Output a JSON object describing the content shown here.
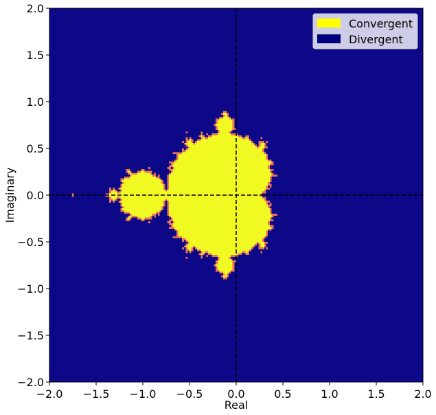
{
  "chart_data": {
    "type": "heatmap",
    "title": "",
    "xlabel": "Real",
    "ylabel": "Imaginary",
    "xlim": [
      -2.0,
      2.0
    ],
    "ylim": [
      -2.0,
      2.0
    ],
    "xticks": [
      -2.0,
      -1.5,
      -1.0,
      -0.5,
      0.0,
      0.5,
      1.0,
      1.5,
      2.0
    ],
    "yticks": [
      -2.0,
      -1.5,
      -1.0,
      -0.5,
      0.0,
      0.5,
      1.0,
      1.5,
      2.0
    ],
    "xtick_labels": [
      "−2.0",
      "−1.5",
      "−1.0",
      "−0.5",
      "0.0",
      "0.5",
      "1.0",
      "1.5",
      "2.0"
    ],
    "ytick_labels": [
      "−2.0",
      "−1.5",
      "−1.0",
      "−0.5",
      "0.0",
      "0.5",
      "1.0",
      "1.5",
      "2.0"
    ],
    "grid": false,
    "reference_lines": [
      {
        "orientation": "vertical",
        "x": 0.0,
        "style": "dashed",
        "color": "#000000"
      },
      {
        "orientation": "horizontal",
        "y": 0.0,
        "style": "dashed",
        "color": "#000000"
      }
    ],
    "legend": {
      "placement": "top-right",
      "entries": [
        {
          "label": "Convergent",
          "color": "#ffff00"
        },
        {
          "label": "Divergent",
          "color": "#00007f"
        }
      ]
    },
    "colors": {
      "convergent": "#f0f921",
      "divergent": "#0d0887",
      "boundary": "#e8755a"
    },
    "grid_resolution": 200,
    "max_iterations": 50
  }
}
